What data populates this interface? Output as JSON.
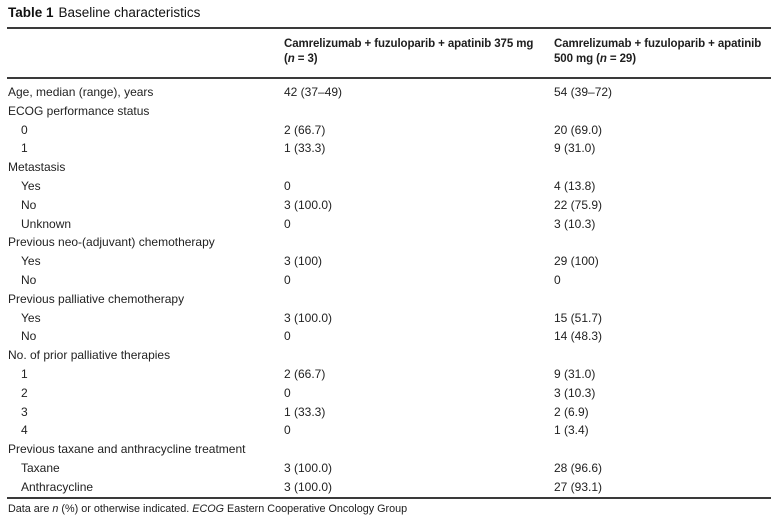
{
  "title": {
    "label": "Table 1",
    "text": "Baseline characteristics"
  },
  "header": {
    "label_col": "",
    "arm375": {
      "line1": "Camrelizumab + fuzuloparib + apatinib 375 mg",
      "line2_pre": "(",
      "n": "n",
      "line2_post": " = 3)"
    },
    "arm500": {
      "line1": "Camrelizumab + fuzuloparib + apatinib",
      "line2_pre": "500 mg (",
      "n": "n",
      "line2_post": " = 29)"
    }
  },
  "rows": [
    {
      "label": "Age, median (range), years",
      "c1": "42 (37–49)",
      "c2": "54 (39–72)",
      "sub": false
    },
    {
      "label": "ECOG performance status",
      "c1": "",
      "c2": "",
      "sub": false
    },
    {
      "label": "0",
      "c1": "2 (66.7)",
      "c2": "20 (69.0)",
      "sub": true
    },
    {
      "label": "1",
      "c1": "1 (33.3)",
      "c2": "9 (31.0)",
      "sub": true
    },
    {
      "label": "Metastasis",
      "c1": "",
      "c2": "",
      "sub": false
    },
    {
      "label": "Yes",
      "c1": "0",
      "c2": "4 (13.8)",
      "sub": true
    },
    {
      "label": "No",
      "c1": "3 (100.0)",
      "c2": "22 (75.9)",
      "sub": true
    },
    {
      "label": "Unknown",
      "c1": "0",
      "c2": "3 (10.3)",
      "sub": true
    },
    {
      "label": "Previous neo-(adjuvant) chemotherapy",
      "c1": "",
      "c2": "",
      "sub": false
    },
    {
      "label": "Yes",
      "c1": "3 (100)",
      "c2": "29 (100)",
      "sub": true
    },
    {
      "label": "No",
      "c1": "0",
      "c2": "0",
      "sub": true
    },
    {
      "label": "Previous palliative chemotherapy",
      "c1": "",
      "c2": "",
      "sub": false
    },
    {
      "label": "Yes",
      "c1": "3 (100.0)",
      "c2": "15 (51.7)",
      "sub": true
    },
    {
      "label": "No",
      "c1": "0",
      "c2": "14 (48.3)",
      "sub": true
    },
    {
      "label": "No. of prior palliative therapies",
      "c1": "",
      "c2": "",
      "sub": false
    },
    {
      "label": "1",
      "c1": "2 (66.7)",
      "c2": "9 (31.0)",
      "sub": true
    },
    {
      "label": "2",
      "c1": "0",
      "c2": "3 (10.3)",
      "sub": true
    },
    {
      "label": "3",
      "c1": "1 (33.3)",
      "c2": "2 (6.9)",
      "sub": true
    },
    {
      "label": "4",
      "c1": "0",
      "c2": "1 (3.4)",
      "sub": true
    },
    {
      "label": "Previous taxane and anthracycline treatment",
      "c1": "",
      "c2": "",
      "sub": false
    },
    {
      "label": "Taxane",
      "c1": "3 (100.0)",
      "c2": "28 (96.6)",
      "sub": true
    },
    {
      "label": "Anthracycline",
      "c1": "3 (100.0)",
      "c2": "27 (93.1)",
      "sub": true
    }
  ],
  "footnote": {
    "p1": "Data are ",
    "p2": "n",
    "p3": " (%) or otherwise indicated. ",
    "p4": "ECOG",
    "p5": " Eastern Cooperative Oncology Group"
  },
  "colors": {
    "rule": "#3a3a3a",
    "text": "#1e1e1e",
    "background": "#ffffff"
  }
}
